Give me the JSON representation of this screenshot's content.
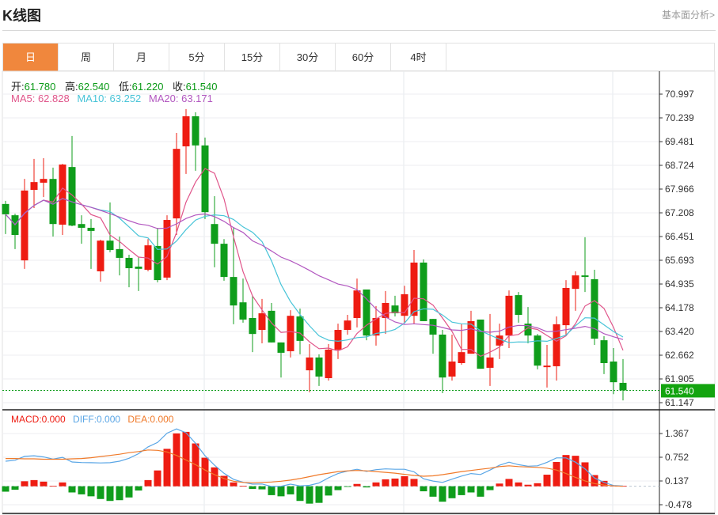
{
  "header": {
    "title": "K线图",
    "link": "基本面分析>"
  },
  "tabs": [
    {
      "label": "日",
      "active": true
    },
    {
      "label": "周"
    },
    {
      "label": "月"
    },
    {
      "label": "5分"
    },
    {
      "label": "15分"
    },
    {
      "label": "30分"
    },
    {
      "label": "60分"
    },
    {
      "label": "4时"
    }
  ],
  "ohlc_legend": {
    "open_label": "开:",
    "open": "61.780",
    "high_label": "高:",
    "high": "62.540",
    "low_label": "低:",
    "low": "61.220",
    "close_label": "收:",
    "close": "61.540"
  },
  "ma_legend": {
    "ma5": "MA5: 62.828",
    "ma10": "MA10: 63.252",
    "ma20": "MA20: 63.171"
  },
  "macd_legend": {
    "macd": "MACD:0.000",
    "diff": "DIFF:0.000",
    "dea": "DEA:0.000"
  },
  "colors": {
    "up": "#ee1c12",
    "down": "#0f9d1b",
    "ma5": "#e0558a",
    "ma10": "#48c4d8",
    "ma20": "#b257c0",
    "diff": "#5aa6e6",
    "dea": "#f07a2a",
    "accent": "#f0873d"
  },
  "chart_data": [
    {
      "type": "candlestick",
      "price_axis_ticks": [
        "70.997",
        "70.239",
        "69.481",
        "68.724",
        "67.966",
        "67.208",
        "66.451",
        "65.693",
        "64.935",
        "64.178",
        "63.420",
        "62.662",
        "61.905",
        "61.147"
      ],
      "ylim": [
        61.147,
        70.997
      ],
      "current_price": "61.540",
      "ma_periods": [
        5,
        10,
        20
      ],
      "ohlc": [
        [
          67.49,
          67.59,
          66.53,
          67.16
        ],
        [
          67.13,
          67.18,
          66.05,
          66.5
        ],
        [
          65.69,
          68.29,
          65.42,
          67.92
        ],
        [
          67.94,
          68.93,
          67.36,
          68.19
        ],
        [
          68.17,
          68.95,
          67.71,
          68.29
        ],
        [
          68.29,
          68.65,
          66.45,
          66.85
        ],
        [
          66.83,
          68.77,
          66.5,
          68.75
        ],
        [
          68.67,
          69.66,
          66.78,
          66.8
        ],
        [
          66.85,
          67.13,
          66.22,
          66.73
        ],
        [
          66.73,
          67.01,
          65.42,
          66.63
        ],
        [
          65.34,
          66.35,
          65.01,
          66.32
        ],
        [
          66.32,
          67.54,
          65.95,
          66.02
        ],
        [
          66.05,
          66.45,
          65.21,
          65.77
        ],
        [
          65.77,
          65.87,
          64.83,
          65.44
        ],
        [
          65.49,
          65.79,
          64.71,
          65.42
        ],
        [
          65.39,
          66.37,
          65.34,
          66.17
        ],
        [
          66.15,
          66.73,
          64.99,
          65.06
        ],
        [
          65.14,
          67.13,
          65.06,
          66.98
        ],
        [
          67.03,
          69.76,
          66.5,
          69.25
        ],
        [
          69.33,
          70.52,
          68.45,
          70.29
        ],
        [
          70.29,
          70.42,
          68.55,
          69.36
        ],
        [
          69.36,
          69.61,
          67.01,
          67.23
        ],
        [
          66.85,
          67.74,
          65.47,
          66.22
        ],
        [
          66.22,
          66.37,
          65.04,
          65.16
        ],
        [
          65.16,
          66.73,
          63.65,
          64.25
        ],
        [
          64.35,
          65.11,
          63.7,
          63.8
        ],
        [
          63.85,
          64.56,
          62.76,
          63.34
        ],
        [
          63.47,
          64.46,
          63.04,
          64.0
        ],
        [
          64.08,
          64.33,
          63.07,
          63.07
        ],
        [
          63.07,
          63.07,
          61.95,
          62.74
        ],
        [
          62.79,
          64.1,
          62.59,
          63.92
        ],
        [
          63.9,
          64.15,
          62.69,
          63.12
        ],
        [
          62.18,
          63.02,
          61.48,
          62.59
        ],
        [
          62.59,
          62.69,
          61.68,
          61.98
        ],
        [
          61.93,
          63.02,
          61.85,
          62.84
        ],
        [
          62.84,
          63.67,
          62.54,
          63.47
        ],
        [
          63.47,
          63.95,
          63.32,
          63.77
        ],
        [
          63.85,
          65.11,
          63.55,
          64.73
        ],
        [
          64.76,
          64.76,
          63.14,
          63.29
        ],
        [
          63.29,
          64.23,
          62.97,
          63.85
        ],
        [
          63.85,
          64.71,
          63.34,
          64.33
        ],
        [
          64.25,
          64.56,
          63.9,
          64.0
        ],
        [
          63.92,
          64.88,
          63.7,
          64.61
        ],
        [
          63.92,
          66.02,
          63.67,
          65.62
        ],
        [
          65.62,
          65.72,
          63.75,
          63.75
        ],
        [
          63.82,
          63.82,
          62.71,
          63.32
        ],
        [
          63.32,
          63.47,
          61.45,
          61.95
        ],
        [
          61.98,
          63.32,
          61.85,
          62.46
        ],
        [
          62.41,
          63.65,
          62.36,
          62.76
        ],
        [
          62.71,
          64.08,
          62.71,
          63.75
        ],
        [
          63.8,
          63.8,
          62.23,
          62.23
        ],
        [
          62.26,
          63.98,
          61.68,
          62.59
        ],
        [
          62.97,
          63.67,
          62.54,
          63.29
        ],
        [
          63.29,
          64.73,
          62.89,
          64.56
        ],
        [
          64.58,
          64.68,
          63.7,
          63.95
        ],
        [
          63.67,
          64.2,
          63.04,
          63.29
        ],
        [
          63.29,
          63.34,
          62.21,
          62.33
        ],
        [
          62.28,
          62.99,
          61.63,
          62.33
        ],
        [
          62.31,
          63.9,
          61.85,
          63.65
        ],
        [
          63.62,
          65.06,
          63.27,
          64.81
        ],
        [
          64.78,
          65.34,
          64.08,
          65.21
        ],
        [
          65.21,
          66.43,
          64.68,
          65.16
        ],
        [
          65.09,
          65.39,
          62.99,
          63.19
        ],
        [
          63.14,
          63.27,
          62.06,
          62.41
        ],
        [
          62.46,
          62.89,
          61.42,
          61.8
        ],
        [
          61.78,
          62.54,
          61.22,
          61.54
        ]
      ]
    },
    {
      "type": "bar+line",
      "axis_ticks": [
        "1.367",
        "0.752",
        "0.137",
        "-0.478"
      ],
      "ylim": [
        -0.478,
        1.367
      ],
      "macd": [
        -0.14,
        -0.09,
        0.13,
        0.16,
        0.12,
        0.01,
        0.1,
        -0.16,
        -0.21,
        -0.26,
        -0.33,
        -0.38,
        -0.36,
        -0.29,
        -0.11,
        0.16,
        0.41,
        0.97,
        1.37,
        1.41,
        1.11,
        0.74,
        0.49,
        0.27,
        0.1,
        0.01,
        -0.07,
        -0.08,
        -0.23,
        -0.26,
        -0.21,
        -0.38,
        -0.45,
        -0.43,
        -0.24,
        -0.1,
        -0.01,
        0.06,
        -0.03,
        0.1,
        0.18,
        0.2,
        0.26,
        0.19,
        -0.13,
        -0.27,
        -0.4,
        -0.31,
        -0.23,
        -0.16,
        -0.27,
        -0.1,
        0.07,
        0.19,
        0.1,
        0.04,
        0.08,
        0.3,
        0.63,
        0.81,
        0.79,
        0.62,
        0.29,
        0.14,
        0.02,
        0.01
      ],
      "dea": [
        0.72,
        0.72,
        0.71,
        0.71,
        0.7,
        0.7,
        0.7,
        0.71,
        0.72,
        0.74,
        0.77,
        0.8,
        0.83,
        0.87,
        0.9,
        0.94,
        0.93,
        0.89,
        0.8,
        0.68,
        0.56,
        0.42,
        0.3,
        0.2,
        0.13,
        0.1,
        0.09,
        0.1,
        0.11,
        0.13,
        0.16,
        0.2,
        0.25,
        0.3,
        0.34,
        0.38,
        0.4,
        0.41,
        0.4,
        0.38,
        0.36,
        0.34,
        0.31,
        0.28,
        0.26,
        0.27,
        0.3,
        0.34,
        0.38,
        0.41,
        0.44,
        0.47,
        0.51,
        0.53,
        0.51,
        0.5,
        0.49,
        0.47,
        0.42,
        0.33,
        0.23,
        0.14,
        0.07,
        0.03,
        0.01,
        0.0
      ]
    }
  ]
}
